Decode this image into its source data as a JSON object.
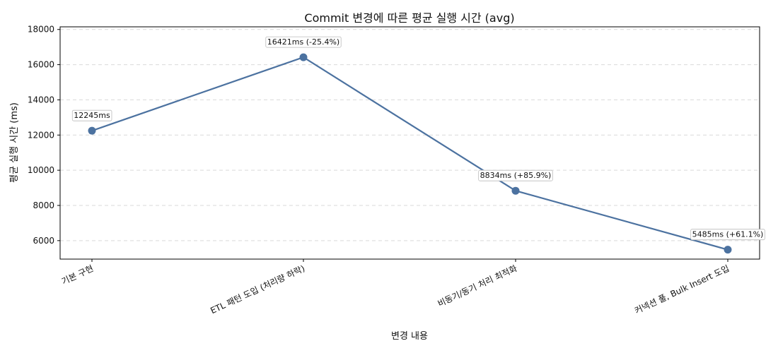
{
  "chart_data": {
    "type": "line",
    "title": "Commit 변경에 따른 평균 실행 시간 (avg)",
    "xlabel": "변경 내용",
    "ylabel": "평균 실행 시간 (ms)",
    "categories": [
      "기본 구현",
      "ETL 패턴 도입 (처리량 하락)",
      "비동기/동기 처리 최적화",
      "커넥션 풀, Bulk Insert 도입"
    ],
    "series": [
      {
        "values": [
          12245,
          16421,
          8834,
          5485
        ],
        "color": "#4c72a0"
      }
    ],
    "annotations": [
      "12245ms",
      "16421ms (-25.4%)",
      "8834ms (+85.9%)",
      "5485ms (+61.1%)"
    ],
    "yticks": [
      6000,
      8000,
      10000,
      12000,
      14000,
      16000,
      18000
    ],
    "ylim": [
      4950,
      18150
    ],
    "grid": "y-dashed",
    "legend": "none"
  }
}
